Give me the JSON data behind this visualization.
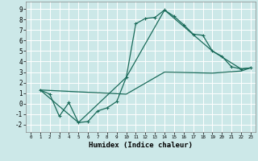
{
  "title": "",
  "xlabel": "Humidex (Indice chaleur)",
  "background_color": "#cce8e8",
  "grid_color": "#ffffff",
  "line_color": "#1a6b5a",
  "xlim": [
    -0.5,
    23.5
  ],
  "ylim": [
    -2.7,
    9.7
  ],
  "xticks": [
    0,
    1,
    2,
    3,
    4,
    5,
    6,
    7,
    8,
    9,
    10,
    11,
    12,
    13,
    14,
    15,
    16,
    17,
    18,
    19,
    20,
    21,
    22,
    23
  ],
  "yticks": [
    -2,
    -1,
    0,
    1,
    2,
    3,
    4,
    5,
    6,
    7,
    8,
    9
  ],
  "line1_x": [
    1,
    2,
    3,
    4,
    5,
    6,
    7,
    8,
    9,
    10,
    11,
    12,
    13,
    14,
    15,
    16,
    17,
    18,
    19,
    20,
    21,
    22,
    23
  ],
  "line1_y": [
    1.3,
    0.9,
    -1.2,
    0.1,
    -1.8,
    -1.7,
    -0.7,
    -0.4,
    0.2,
    2.5,
    7.6,
    8.1,
    8.2,
    8.9,
    8.3,
    7.5,
    6.6,
    6.5,
    5.0,
    4.5,
    3.5,
    3.3,
    3.4
  ],
  "line2_x": [
    1,
    5,
    10,
    14,
    19,
    22,
    23
  ],
  "line2_y": [
    1.3,
    -1.8,
    2.5,
    8.9,
    5.0,
    3.3,
    3.4
  ],
  "line3_x": [
    1,
    10,
    14,
    19,
    22,
    23
  ],
  "line3_y": [
    1.3,
    0.9,
    3.0,
    2.9,
    3.1,
    3.4
  ],
  "marker": "+",
  "markersize": 3.5,
  "linewidth": 0.9,
  "xlabel_fontsize": 6.5,
  "tick_fontsize_x": 4.2,
  "tick_fontsize_y": 5.5
}
